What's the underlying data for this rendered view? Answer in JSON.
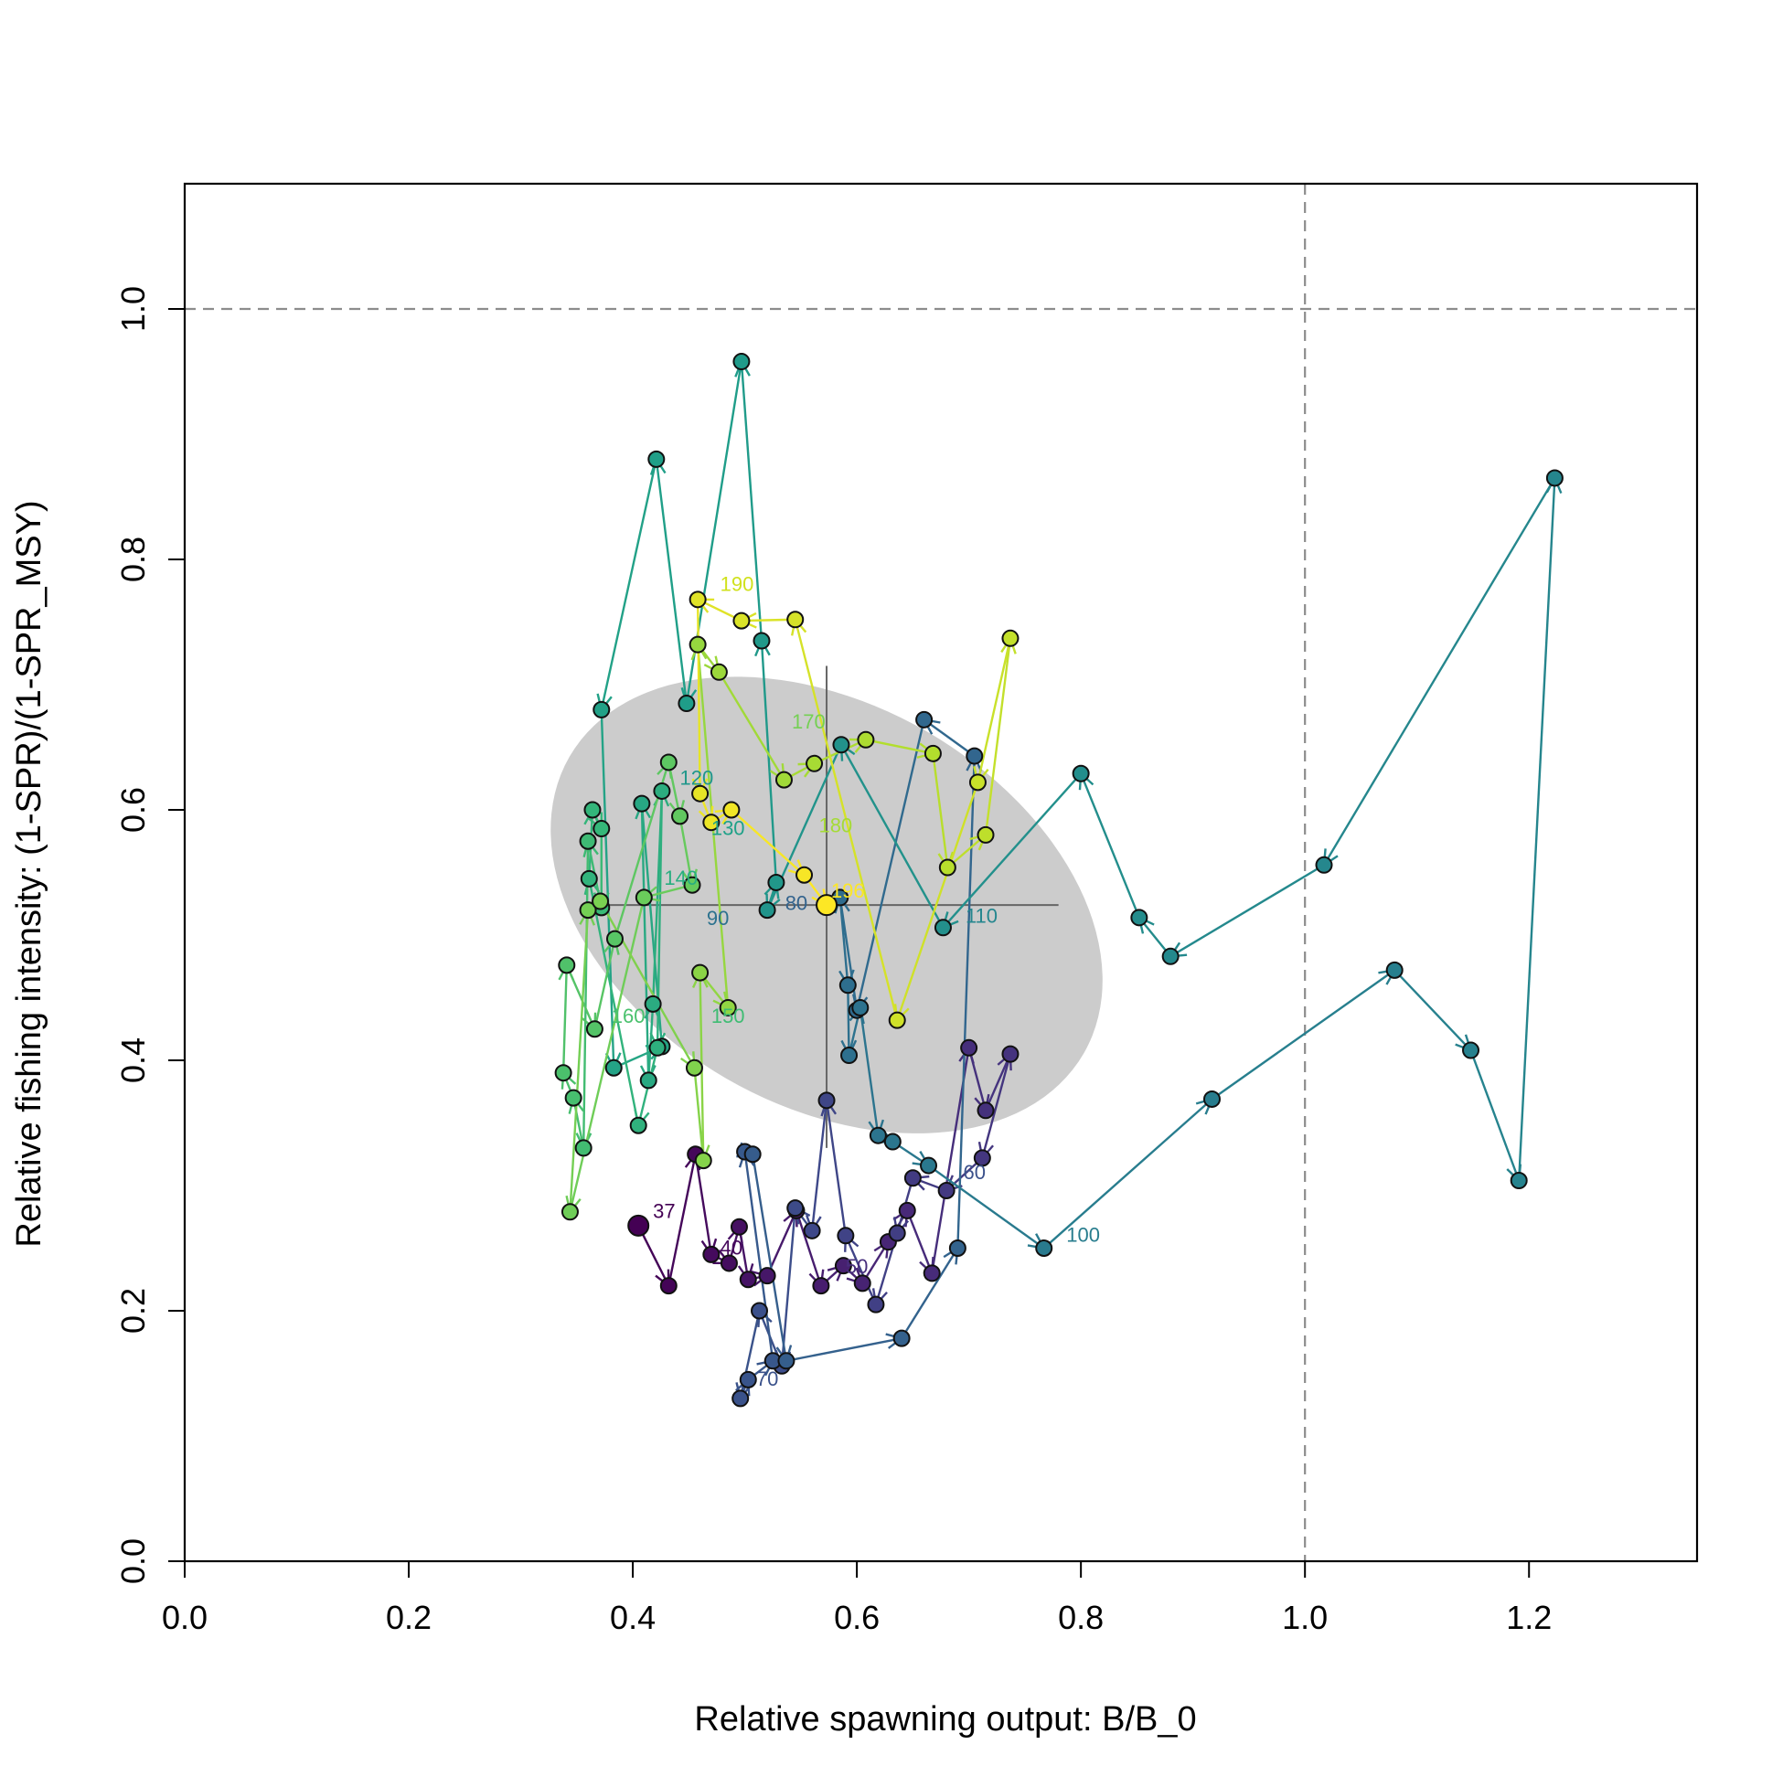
{
  "chart_data": {
    "type": "scatter",
    "title": "",
    "xlabel": "Relative spawning output: B/B_0",
    "ylabel": "Relative fishing intensity: (1-SPR)/(1-SPR_MSY)",
    "xlim": [
      0,
      1.35
    ],
    "ylim": [
      0,
      1.1
    ],
    "x_ticks": [
      "0.0",
      "0.2",
      "0.4",
      "0.6",
      "0.8",
      "1.0",
      "1.2"
    ],
    "x_tick_values": [
      0,
      0.2,
      0.4,
      0.6,
      0.8,
      1.0,
      1.2
    ],
    "y_ticks": [
      "0.0",
      "0.2",
      "0.4",
      "0.6",
      "0.8",
      "1.0"
    ],
    "y_tick_values": [
      0,
      0.2,
      0.4,
      0.6,
      0.8,
      1.0
    ],
    "reference_lines": {
      "x": 1.0,
      "y": 1.0,
      "style": "dashed",
      "color": "#8c8c8c"
    },
    "grid": false,
    "legend": "none",
    "color_scale": "viridis (dark purple = early years, yellow = recent years)",
    "final_year": {
      "x": 0.573,
      "y": 0.524,
      "x_interval": [
        0.37,
        0.78
      ],
      "y_interval": [
        0.33,
        0.715
      ],
      "ellipse": {
        "center": [
          0.573,
          0.524
        ],
        "rx": 0.265,
        "ry": 0.16,
        "rotation_deg": 30,
        "color": "#cccccc"
      },
      "crosshair_color": "#666666"
    },
    "trajectory": [
      {
        "x": 0.405,
        "y": 0.268
      },
      {
        "x": 0.432,
        "y": 0.22
      },
      {
        "x": 0.456,
        "y": 0.325
      },
      {
        "x": 0.47,
        "y": 0.245
      },
      {
        "x": 0.486,
        "y": 0.238
      },
      {
        "x": 0.495,
        "y": 0.267
      },
      {
        "x": 0.503,
        "y": 0.225
      },
      {
        "x": 0.52,
        "y": 0.228
      },
      {
        "x": 0.546,
        "y": 0.28
      },
      {
        "x": 0.568,
        "y": 0.22
      },
      {
        "x": 0.588,
        "y": 0.236
      },
      {
        "x": 0.605,
        "y": 0.222
      },
      {
        "x": 0.628,
        "y": 0.255
      },
      {
        "x": 0.645,
        "y": 0.28
      },
      {
        "x": 0.667,
        "y": 0.23
      },
      {
        "x": 0.7,
        "y": 0.41
      },
      {
        "x": 0.715,
        "y": 0.36
      },
      {
        "x": 0.737,
        "y": 0.405
      },
      {
        "x": 0.712,
        "y": 0.322
      },
      {
        "x": 0.68,
        "y": 0.296
      },
      {
        "x": 0.65,
        "y": 0.306
      },
      {
        "x": 0.636,
        "y": 0.262
      },
      {
        "x": 0.617,
        "y": 0.205
      },
      {
        "x": 0.59,
        "y": 0.26
      },
      {
        "x": 0.573,
        "y": 0.368
      },
      {
        "x": 0.56,
        "y": 0.264
      },
      {
        "x": 0.545,
        "y": 0.282
      },
      {
        "x": 0.533,
        "y": 0.156
      },
      {
        "x": 0.513,
        "y": 0.2
      },
      {
        "x": 0.496,
        "y": 0.13
      },
      {
        "x": 0.503,
        "y": 0.145
      },
      {
        "x": 0.525,
        "y": 0.16
      },
      {
        "x": 0.5,
        "y": 0.327
      },
      {
        "x": 0.507,
        "y": 0.325
      },
      {
        "x": 0.537,
        "y": 0.16
      },
      {
        "x": 0.64,
        "y": 0.178
      },
      {
        "x": 0.69,
        "y": 0.25
      },
      {
        "x": 0.705,
        "y": 0.643
      },
      {
        "x": 0.66,
        "y": 0.672
      },
      {
        "x": 0.6,
        "y": 0.44
      },
      {
        "x": 0.585,
        "y": 0.53
      },
      {
        "x": 0.592,
        "y": 0.46
      },
      {
        "x": 0.593,
        "y": 0.404
      },
      {
        "x": 0.603,
        "y": 0.442
      },
      {
        "x": 0.619,
        "y": 0.34
      },
      {
        "x": 0.632,
        "y": 0.335
      },
      {
        "x": 0.664,
        "y": 0.316
      },
      {
        "x": 0.767,
        "y": 0.25
      },
      {
        "x": 0.917,
        "y": 0.369
      },
      {
        "x": 1.08,
        "y": 0.472
      },
      {
        "x": 1.148,
        "y": 0.408
      },
      {
        "x": 1.191,
        "y": 0.304
      },
      {
        "x": 1.223,
        "y": 0.865
      },
      {
        "x": 1.017,
        "y": 0.556
      },
      {
        "x": 0.88,
        "y": 0.483
      },
      {
        "x": 0.852,
        "y": 0.514
      },
      {
        "x": 0.8,
        "y": 0.629
      },
      {
        "x": 0.677,
        "y": 0.506
      },
      {
        "x": 0.586,
        "y": 0.652
      },
      {
        "x": 0.52,
        "y": 0.52
      },
      {
        "x": 0.528,
        "y": 0.542
      },
      {
        "x": 0.515,
        "y": 0.735
      },
      {
        "x": 0.497,
        "y": 0.958
      },
      {
        "x": 0.448,
        "y": 0.685
      },
      {
        "x": 0.421,
        "y": 0.88
      },
      {
        "x": 0.372,
        "y": 0.68
      },
      {
        "x": 0.383,
        "y": 0.394
      },
      {
        "x": 0.426,
        "y": 0.411
      },
      {
        "x": 0.408,
        "y": 0.605
      },
      {
        "x": 0.414,
        "y": 0.384
      },
      {
        "x": 0.418,
        "y": 0.445
      },
      {
        "x": 0.426,
        "y": 0.615
      },
      {
        "x": 0.422,
        "y": 0.41
      },
      {
        "x": 0.405,
        "y": 0.348
      },
      {
        "x": 0.361,
        "y": 0.545
      },
      {
        "x": 0.364,
        "y": 0.6
      },
      {
        "x": 0.372,
        "y": 0.585
      },
      {
        "x": 0.372,
        "y": 0.522
      },
      {
        "x": 0.36,
        "y": 0.575
      },
      {
        "x": 0.356,
        "y": 0.33
      },
      {
        "x": 0.347,
        "y": 0.37
      },
      {
        "x": 0.338,
        "y": 0.39
      },
      {
        "x": 0.341,
        "y": 0.476
      },
      {
        "x": 0.366,
        "y": 0.425
      },
      {
        "x": 0.384,
        "y": 0.497
      },
      {
        "x": 0.432,
        "y": 0.638
      },
      {
        "x": 0.442,
        "y": 0.595
      },
      {
        "x": 0.453,
        "y": 0.54
      },
      {
        "x": 0.41,
        "y": 0.53
      },
      {
        "x": 0.344,
        "y": 0.279
      },
      {
        "x": 0.36,
        "y": 0.52
      },
      {
        "x": 0.371,
        "y": 0.527
      },
      {
        "x": 0.455,
        "y": 0.394
      },
      {
        "x": 0.463,
        "y": 0.32
      },
      {
        "x": 0.46,
        "y": 0.47
      },
      {
        "x": 0.485,
        "y": 0.442
      },
      {
        "x": 0.458,
        "y": 0.732
      },
      {
        "x": 0.477,
        "y": 0.71
      },
      {
        "x": 0.535,
        "y": 0.624
      },
      {
        "x": 0.562,
        "y": 0.637
      },
      {
        "x": 0.608,
        "y": 0.656
      },
      {
        "x": 0.668,
        "y": 0.645
      },
      {
        "x": 0.681,
        "y": 0.554
      },
      {
        "x": 0.715,
        "y": 0.58
      },
      {
        "x": 0.737,
        "y": 0.737
      },
      {
        "x": 0.708,
        "y": 0.622
      },
      {
        "x": 0.636,
        "y": 0.432
      },
      {
        "x": 0.545,
        "y": 0.752
      },
      {
        "x": 0.497,
        "y": 0.751
      },
      {
        "x": 0.458,
        "y": 0.768
      },
      {
        "x": 0.46,
        "y": 0.613
      },
      {
        "x": 0.47,
        "y": 0.59
      },
      {
        "x": 0.488,
        "y": 0.6
      },
      {
        "x": 0.553,
        "y": 0.548
      },
      {
        "x": 0.573,
        "y": 0.524
      }
    ],
    "year_labels": [
      {
        "text": "37",
        "x": 0.418,
        "y": 0.274,
        "color": "#440154"
      },
      {
        "text": "40",
        "x": 0.478,
        "y": 0.245,
        "color": "#46085c"
      },
      {
        "text": "50",
        "x": 0.59,
        "y": 0.23,
        "color": "#472e7c"
      },
      {
        "text": "60",
        "x": 0.695,
        "y": 0.305,
        "color": "#3b518b"
      },
      {
        "text": "70",
        "x": 0.51,
        "y": 0.14,
        "color": "#3b528b"
      },
      {
        "text": "80",
        "x": 0.536,
        "y": 0.52,
        "color": "#33638d"
      },
      {
        "text": "90",
        "x": 0.466,
        "y": 0.508,
        "color": "#2c728e"
      },
      {
        "text": "100",
        "x": 0.787,
        "y": 0.255,
        "color": "#287d8e"
      },
      {
        "text": "110",
        "x": 0.697,
        "y": 0.51,
        "color": "#24868e"
      },
      {
        "text": "120",
        "x": 0.442,
        "y": 0.62,
        "color": "#1f978b"
      },
      {
        "text": "130",
        "x": 0.47,
        "y": 0.58,
        "color": "#1fa188"
      },
      {
        "text": "140",
        "x": 0.428,
        "y": 0.54,
        "color": "#28ae80"
      },
      {
        "text": "150",
        "x": 0.47,
        "y": 0.43,
        "color": "#3fbc73"
      },
      {
        "text": "160",
        "x": 0.381,
        "y": 0.43,
        "color": "#4ac16d"
      },
      {
        "text": "170",
        "x": 0.542,
        "y": 0.665,
        "color": "#75d054"
      },
      {
        "text": "180",
        "x": 0.566,
        "y": 0.582,
        "color": "#a5db36"
      },
      {
        "text": "190",
        "x": 0.478,
        "y": 0.775,
        "color": "#d0e11c"
      },
      {
        "text": "196",
        "x": 0.577,
        "y": 0.53,
        "color": "#fde725"
      }
    ]
  }
}
